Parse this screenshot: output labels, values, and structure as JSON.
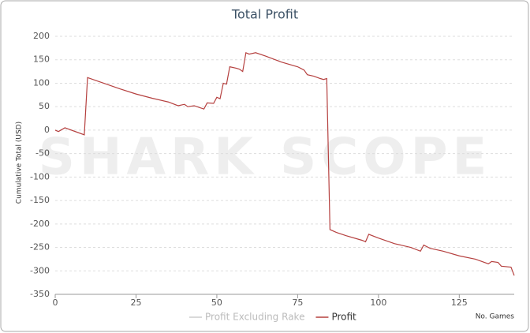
{
  "chart_data": {
    "type": "line",
    "title": "Total Profit",
    "watermark": "SHARK SCOPE",
    "y_label": "Cumulative Total (USD)",
    "x_label": "No. Games",
    "xlim": [
      0,
      142
    ],
    "xticks": [
      0,
      25,
      50,
      75,
      100,
      125
    ],
    "ylim": [
      -350,
      200
    ],
    "yticks": [
      -350,
      -300,
      -250,
      -200,
      -150,
      -100,
      -50,
      0,
      50,
      100,
      150,
      200
    ],
    "grid": true,
    "x": [
      0,
      1,
      3,
      9,
      10,
      15,
      20,
      25,
      30,
      35,
      38,
      40,
      41,
      43,
      46,
      47,
      49,
      50,
      51,
      52,
      53,
      54,
      56,
      57,
      58,
      59,
      60,
      62,
      65,
      70,
      75,
      77,
      78,
      80,
      82,
      83,
      84,
      85,
      87,
      90,
      95,
      96,
      97,
      100,
      105,
      110,
      113,
      114,
      116,
      120,
      125,
      130,
      134,
      135,
      137,
      138,
      141,
      142
    ],
    "series": [
      {
        "name": "Profit Excluding Rake",
        "color": "#cccccc",
        "visible": false
      },
      {
        "name": "Profit",
        "color": "#b5403f",
        "visible": true,
        "values": [
          0,
          -3,
          5,
          -10,
          112,
          100,
          88,
          77,
          68,
          60,
          52,
          55,
          50,
          52,
          45,
          58,
          57,
          70,
          67,
          100,
          98,
          135,
          132,
          130,
          125,
          165,
          162,
          165,
          158,
          145,
          135,
          128,
          118,
          115,
          110,
          108,
          110,
          -212,
          -218,
          -225,
          -235,
          -238,
          -222,
          -230,
          -242,
          -250,
          -258,
          -245,
          -252,
          -258,
          -268,
          -275,
          -285,
          -280,
          -282,
          -290,
          -292,
          -310
        ]
      }
    ]
  }
}
